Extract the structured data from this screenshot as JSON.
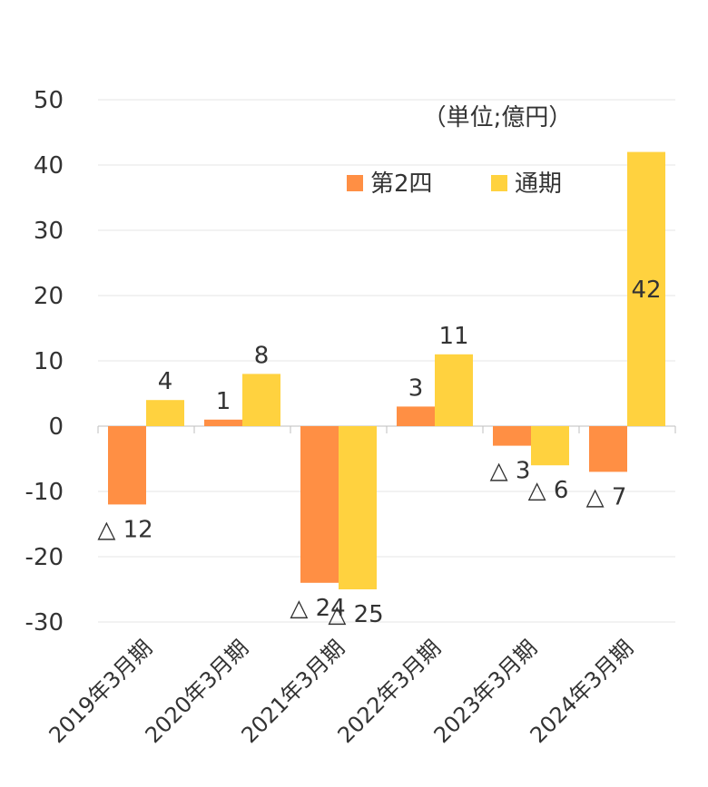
{
  "chart_data": {
    "type": "bar",
    "unit_label": "（単位;億円）",
    "categories": [
      "2019年3月期",
      "2020年3月期",
      "2021年3月期",
      "2022年3月期",
      "2023年3月期",
      "2024年3月期"
    ],
    "series": [
      {
        "name": "第2四",
        "color": "#FF8F44",
        "values": [
          -12,
          1,
          -24,
          3,
          -3,
          -7
        ],
        "labels": [
          "△ 12",
          "1",
          "△ 24",
          "3",
          "△ 3",
          "△ 7"
        ]
      },
      {
        "name": "通期",
        "color": "#FFD23F",
        "values": [
          4,
          8,
          -25,
          11,
          -6,
          42
        ],
        "labels": [
          "4",
          "8",
          "△ 25",
          "11",
          "△ 6",
          "42"
        ]
      }
    ],
    "ylim": [
      -30,
      50
    ],
    "yticks": [
      -30,
      -20,
      -10,
      0,
      10,
      20,
      30,
      40,
      50
    ],
    "grid": true,
    "legend_position": "top-right"
  }
}
